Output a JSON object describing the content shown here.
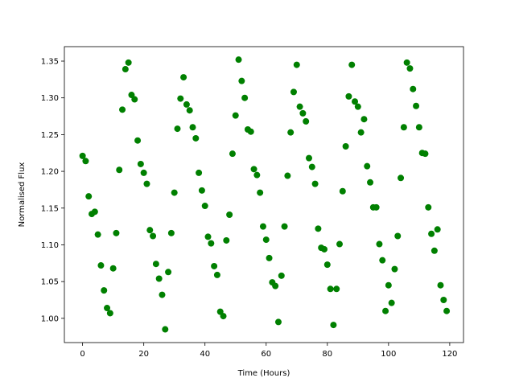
{
  "chart_data": {
    "type": "scatter",
    "xlabel": "Time (Hours)",
    "ylabel": "Normalised Flux",
    "color": "#008000",
    "grid": false,
    "xlim": [
      -5.95,
      124.5
    ],
    "ylim": [
      0.967,
      1.3697
    ],
    "xticks": [
      0,
      20,
      40,
      60,
      80,
      100,
      120
    ],
    "yticks": [
      {
        "value": 1.0,
        "label": "1.00"
      },
      {
        "value": 1.05,
        "label": "1.05"
      },
      {
        "value": 1.1,
        "label": "1.10"
      },
      {
        "value": 1.15,
        "label": "1.15"
      },
      {
        "value": 1.2,
        "label": "1.20"
      },
      {
        "value": 1.25,
        "label": "1.25"
      },
      {
        "value": 1.3,
        "label": "1.30"
      },
      {
        "value": 1.35,
        "label": "1.35"
      }
    ],
    "x": [
      0,
      1,
      2,
      3,
      4,
      5,
      6,
      7,
      8,
      9,
      10,
      11,
      12,
      13,
      14,
      15,
      16,
      17,
      18,
      19,
      20,
      21,
      22,
      23,
      24,
      25,
      26,
      27,
      28,
      29,
      30,
      31,
      32,
      33,
      34,
      35,
      36,
      37,
      38,
      39,
      40,
      41,
      42,
      43,
      44,
      45,
      46,
      47,
      48,
      49,
      50,
      51,
      52,
      53,
      54,
      55,
      56,
      57,
      58,
      59,
      60,
      61,
      62,
      63,
      64,
      65,
      66,
      67,
      68,
      69,
      70,
      71,
      72,
      73,
      74,
      75,
      76,
      77,
      78,
      79,
      80,
      81,
      82,
      83,
      84,
      85,
      86,
      87,
      88,
      89,
      90,
      91,
      92,
      93,
      94,
      95,
      96,
      97,
      98,
      99,
      100,
      101,
      102,
      103,
      104,
      105,
      106,
      107,
      108,
      109,
      110,
      111,
      112,
      113,
      114,
      115,
      116,
      117,
      118,
      119
    ],
    "values": [
      1.221,
      1.214,
      1.166,
      1.142,
      1.145,
      1.114,
      1.072,
      1.038,
      1.014,
      1.007,
      1.068,
      1.116,
      1.202,
      1.284,
      1.339,
      1.348,
      1.304,
      1.298,
      1.242,
      1.21,
      1.198,
      1.183,
      1.12,
      1.112,
      1.074,
      1.054,
      1.032,
      0.985,
      1.063,
      1.116,
      1.171,
      1.258,
      1.299,
      1.328,
      1.291,
      1.283,
      1.26,
      1.245,
      1.198,
      1.174,
      1.153,
      1.111,
      1.102,
      1.071,
      1.059,
      1.009,
      1.003,
      1.106,
      1.141,
      1.224,
      1.276,
      1.352,
      1.323,
      1.3,
      1.257,
      1.254,
      1.203,
      1.195,
      1.171,
      1.125,
      1.107,
      1.082,
      1.049,
      1.044,
      0.995,
      1.058,
      1.125,
      1.194,
      1.253,
      1.308,
      1.345,
      1.288,
      1.279,
      1.268,
      1.218,
      1.206,
      1.183,
      1.122,
      1.096,
      1.094,
      1.073,
      1.04,
      0.991,
      1.04,
      1.101,
      1.173,
      1.234,
      1.302,
      1.345,
      1.295,
      1.288,
      1.253,
      1.271,
      1.207,
      1.185,
      1.151,
      1.151,
      1.101,
      1.079,
      1.01,
      1.045,
      1.021,
      1.067,
      1.112,
      1.191,
      1.26,
      1.348,
      1.34,
      1.312,
      1.289,
      1.26,
      1.225,
      1.224,
      1.151,
      1.115,
      1.092,
      1.121,
      1.045,
      1.025,
      1.01
    ]
  }
}
